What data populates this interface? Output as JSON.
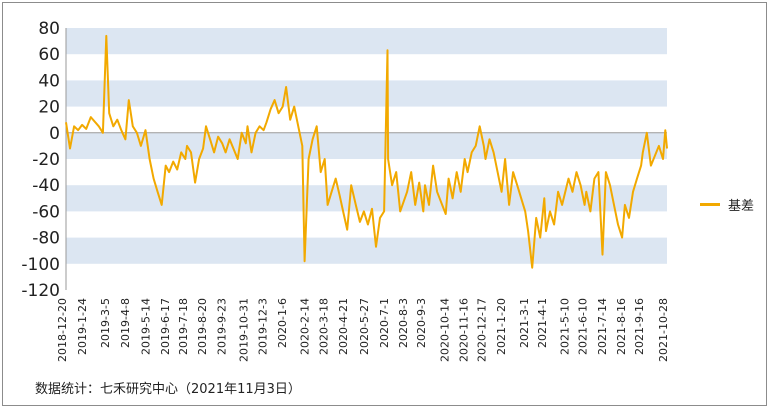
{
  "chart_data": {
    "type": "line",
    "title": "",
    "xlabel": "",
    "ylabel": "",
    "ylim": [
      -120,
      80
    ],
    "yticks": [
      80,
      60,
      40,
      20,
      0,
      -20,
      -40,
      -60,
      -80,
      -100,
      -120
    ],
    "x_ticks": [
      "2018-12-20",
      "2019-1-24",
      "2019-3-5",
      "2019-4-8",
      "2019-5-14",
      "2019-6-17",
      "2019-7-18",
      "2019-8-20",
      "2019-9-23",
      "2019-10-31",
      "2019-12-3",
      "2020-1-6",
      "2020-2-14",
      "2020-3-18",
      "2020-4-21",
      "2020-5-27",
      "2020-7-1",
      "2020-8-3",
      "2020-9-3",
      "2020-10-14",
      "2020-11-16",
      "2020-12-17",
      "2021-1-20",
      "2021-3-1",
      "2021-4-1",
      "2021-5-10",
      "2021-6-10",
      "2021-7-14",
      "2021-8-16",
      "2021-9-16",
      "2021-10-28"
    ],
    "grid": "alternating horizontal bands",
    "legend_position": "right",
    "series": [
      {
        "name": "基差",
        "color": "#f2a900",
        "points": [
          [
            "2018-12-20",
            8
          ],
          [
            "2018-12-27",
            -12
          ],
          [
            "2019-1-3",
            5
          ],
          [
            "2019-1-10",
            2
          ],
          [
            "2019-1-17",
            6
          ],
          [
            "2019-1-24",
            3
          ],
          [
            "2019-2-1",
            12
          ],
          [
            "2019-2-15",
            5
          ],
          [
            "2019-2-22",
            0
          ],
          [
            "2019-2-28",
            74
          ],
          [
            "2019-3-5",
            15
          ],
          [
            "2019-3-12",
            5
          ],
          [
            "2019-3-19",
            10
          ],
          [
            "2019-3-26",
            2
          ],
          [
            "2019-4-2",
            -5
          ],
          [
            "2019-4-8",
            25
          ],
          [
            "2019-4-15",
            5
          ],
          [
            "2019-4-22",
            0
          ],
          [
            "2019-4-29",
            -10
          ],
          [
            "2019-5-7",
            2
          ],
          [
            "2019-5-14",
            -20
          ],
          [
            "2019-5-21",
            -35
          ],
          [
            "2019-5-28",
            -45
          ],
          [
            "2019-6-4",
            -55
          ],
          [
            "2019-6-11",
            -25
          ],
          [
            "2019-6-17",
            -30
          ],
          [
            "2019-6-24",
            -22
          ],
          [
            "2019-7-1",
            -28
          ],
          [
            "2019-7-8",
            -15
          ],
          [
            "2019-7-15",
            -20
          ],
          [
            "2019-7-18",
            -10
          ],
          [
            "2019-7-25",
            -15
          ],
          [
            "2019-8-1",
            -38
          ],
          [
            "2019-8-8",
            -20
          ],
          [
            "2019-8-15",
            -12
          ],
          [
            "2019-8-20",
            5
          ],
          [
            "2019-8-27",
            -5
          ],
          [
            "2019-9-3",
            -15
          ],
          [
            "2019-9-10",
            -3
          ],
          [
            "2019-9-17",
            -8
          ],
          [
            "2019-9-23",
            -15
          ],
          [
            "2019-9-30",
            -5
          ],
          [
            "2019-10-14",
            -20
          ],
          [
            "2019-10-21",
            0
          ],
          [
            "2019-10-28",
            -8
          ],
          [
            "2019-10-31",
            5
          ],
          [
            "2019-11-7",
            -15
          ],
          [
            "2019-11-14",
            0
          ],
          [
            "2019-11-21",
            5
          ],
          [
            "2019-11-28",
            2
          ],
          [
            "2019-12-3",
            8
          ],
          [
            "2019-12-10",
            18
          ],
          [
            "2019-12-17",
            25
          ],
          [
            "2019-12-24",
            15
          ],
          [
            "2019-12-31",
            20
          ],
          [
            "2020-1-6",
            35
          ],
          [
            "2020-1-13",
            10
          ],
          [
            "2020-1-20",
            20
          ],
          [
            "2020-2-3",
            -10
          ],
          [
            "2020-2-7",
            -98
          ],
          [
            "2020-2-14",
            -20
          ],
          [
            "2020-2-21",
            -5
          ],
          [
            "2020-2-28",
            5
          ],
          [
            "2020-3-6",
            -30
          ],
          [
            "2020-3-13",
            -20
          ],
          [
            "2020-3-18",
            -55
          ],
          [
            "2020-3-25",
            -45
          ],
          [
            "2020-4-1",
            -35
          ],
          [
            "2020-4-8",
            -48
          ],
          [
            "2020-4-15",
            -62
          ],
          [
            "2020-4-21",
            -74
          ],
          [
            "2020-4-28",
            -40
          ],
          [
            "2020-5-6",
            -55
          ],
          [
            "2020-5-13",
            -68
          ],
          [
            "2020-5-20",
            -60
          ],
          [
            "2020-5-27",
            -70
          ],
          [
            "2020-6-3",
            -58
          ],
          [
            "2020-6-10",
            -87
          ],
          [
            "2020-6-17",
            -65
          ],
          [
            "2020-6-24",
            -60
          ],
          [
            "2020-6-30",
            63
          ],
          [
            "2020-7-1",
            -20
          ],
          [
            "2020-7-8",
            -40
          ],
          [
            "2020-7-15",
            -30
          ],
          [
            "2020-7-22",
            -60
          ],
          [
            "2020-8-3",
            -45
          ],
          [
            "2020-8-10",
            -30
          ],
          [
            "2020-8-17",
            -55
          ],
          [
            "2020-8-24",
            -38
          ],
          [
            "2020-8-31",
            -60
          ],
          [
            "2020-9-3",
            -40
          ],
          [
            "2020-9-10",
            -55
          ],
          [
            "2020-9-17",
            -25
          ],
          [
            "2020-9-24",
            -45
          ],
          [
            "2020-10-9",
            -62
          ],
          [
            "2020-10-14",
            -35
          ],
          [
            "2020-10-21",
            -50
          ],
          [
            "2020-10-28",
            -30
          ],
          [
            "2020-11-4",
            -45
          ],
          [
            "2020-11-11",
            -20
          ],
          [
            "2020-11-16",
            -30
          ],
          [
            "2020-11-23",
            -15
          ],
          [
            "2020-11-30",
            -10
          ],
          [
            "2020-12-7",
            5
          ],
          [
            "2020-12-14",
            -10
          ],
          [
            "2020-12-17",
            -20
          ],
          [
            "2020-12-24",
            -5
          ],
          [
            "2020-12-31",
            -15
          ],
          [
            "2021-1-7",
            -30
          ],
          [
            "2021-1-14",
            -45
          ],
          [
            "2021-1-20",
            -20
          ],
          [
            "2021-1-27",
            -55
          ],
          [
            "2021-2-3",
            -30
          ],
          [
            "2021-2-10",
            -40
          ],
          [
            "2021-2-24",
            -60
          ],
          [
            "2021-3-1",
            -75
          ],
          [
            "2021-3-8",
            -103
          ],
          [
            "2021-3-15",
            -65
          ],
          [
            "2021-3-22",
            -80
          ],
          [
            "2021-3-29",
            -50
          ],
          [
            "2021-4-1",
            -75
          ],
          [
            "2021-4-8",
            -60
          ],
          [
            "2021-4-15",
            -70
          ],
          [
            "2021-4-22",
            -45
          ],
          [
            "2021-4-29",
            -55
          ],
          [
            "2021-5-10",
            -35
          ],
          [
            "2021-5-17",
            -45
          ],
          [
            "2021-5-24",
            -30
          ],
          [
            "2021-5-31",
            -40
          ],
          [
            "2021-6-7",
            -55
          ],
          [
            "2021-6-10",
            -45
          ],
          [
            "2021-6-17",
            -60
          ],
          [
            "2021-6-24",
            -35
          ],
          [
            "2021-7-1",
            -30
          ],
          [
            "2021-7-8",
            -93
          ],
          [
            "2021-7-14",
            -30
          ],
          [
            "2021-7-21",
            -40
          ],
          [
            "2021-7-28",
            -55
          ],
          [
            "2021-8-4",
            -70
          ],
          [
            "2021-8-11",
            -80
          ],
          [
            "2021-8-16",
            -55
          ],
          [
            "2021-8-23",
            -65
          ],
          [
            "2021-8-30",
            -45
          ],
          [
            "2021-9-6",
            -35
          ],
          [
            "2021-9-13",
            -25
          ],
          [
            "2021-9-16",
            -15
          ],
          [
            "2021-9-23",
            0
          ],
          [
            "2021-9-30",
            -25
          ],
          [
            "2021-10-14",
            -10
          ],
          [
            "2021-10-21",
            -20
          ],
          [
            "2021-10-25",
            2
          ],
          [
            "2021-10-28",
            -12
          ]
        ]
      }
    ]
  },
  "source_note": "数据统计：七禾研究中心（2021年11月3日）"
}
